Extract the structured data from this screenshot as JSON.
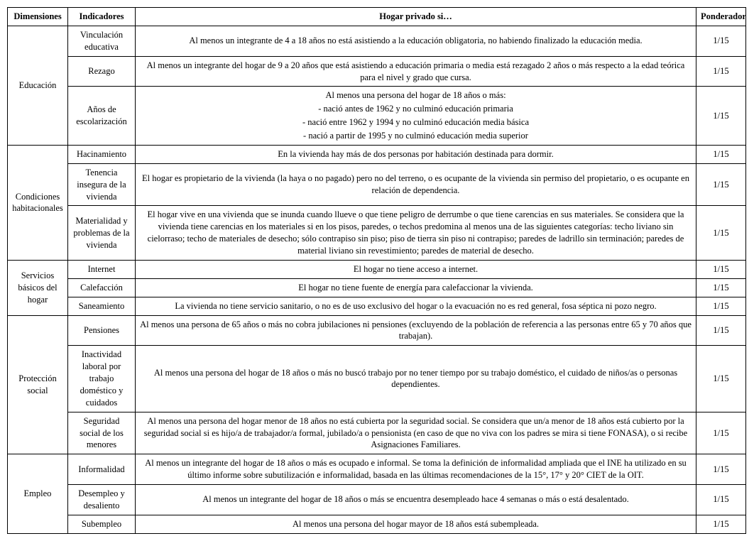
{
  "headers": {
    "dim": "Dimensiones",
    "ind": "Indicadores",
    "desc": "Hogar privado si…",
    "pond": "Ponderador"
  },
  "dims": {
    "educacion": "Educación",
    "condiciones": "Condiciones habitacionales",
    "servicios": "Servicios básicos del hogar",
    "proteccion": "Protección social",
    "empleo": "Empleo"
  },
  "rows": {
    "vinc": {
      "ind": "Vinculación educativa",
      "desc": "Al menos un integrante de 4 a 18 años no está asistiendo a la educación obligatoria, no habiendo finalizado la educación media.",
      "pond": "1/15"
    },
    "rezago": {
      "ind": "Rezago",
      "desc": "Al menos un integrante del hogar de 9 a 20 años que está asistiendo a educación primaria o media está rezagado 2 años o más respecto a la edad teórica para el nivel y grado que cursa.",
      "pond": "1/15"
    },
    "anios": {
      "ind": "Años de escolarización",
      "desc_intro": "Al menos una persona del hogar de 18 años o más:",
      "desc_b1": "-  nació antes de 1962 y no culminó educación primaria",
      "desc_b2": "- nació entre 1962 y 1994 y no culminó educación media básica",
      "desc_b3": "- nació a partir de 1995 y no culminó educación media superior",
      "pond": "1/15"
    },
    "hacin": {
      "ind": "Hacinamiento",
      "desc": "En la vivienda hay más de dos personas por habitación destinada para dormir.",
      "pond": "1/15"
    },
    "tenencia": {
      "ind": "Tenencia insegura de la vivienda",
      "desc": "El hogar es propietario de la vivienda (la haya o no pagado) pero no del terreno, o es ocupante de la vivienda sin permiso del propietario, o es ocupante en relación de dependencia.",
      "pond": "1/15"
    },
    "material": {
      "ind": "Materialidad y problemas de la vivienda",
      "desc": "El hogar vive en una vivienda que se inunda cuando llueve o que tiene peligro de derrumbe o que tiene carencias en sus materiales. Se considera que la vivienda tiene carencias en los materiales si en los pisos, paredes, o techos predomina al menos una de las siguientes categorías: techo liviano sin cielorraso; techo de materiales de desecho; sólo contrapiso sin piso; piso de tierra sin piso ni contrapiso; paredes de ladrillo sin terminación; paredes de material liviano sin revestimiento; paredes de material de desecho.",
      "pond": "1/15"
    },
    "internet": {
      "ind": "Internet",
      "desc": "El hogar no tiene acceso a internet.",
      "pond": "1/15"
    },
    "calef": {
      "ind": "Calefacción",
      "desc": "El hogar no tiene fuente de energía para calefaccionar la vivienda.",
      "pond": "1/15"
    },
    "sanea": {
      "ind": "Saneamiento",
      "desc": "La vivienda no tiene servicio sanitario, o no es de uso exclusivo del hogar o la evacuación no es red general, fosa séptica ni pozo negro.",
      "pond": "1/15"
    },
    "pens": {
      "ind": "Pensiones",
      "desc": "Al menos una persona de 65 años o más no cobra jubilaciones ni pensiones (excluyendo de la población de referencia a las personas entre 65 y 70 años que trabajan).",
      "pond": "1/15"
    },
    "inact": {
      "ind": "Inactividad laboral por trabajo doméstico y cuidados",
      "desc": "Al menos una persona del hogar de 18 años o más no buscó trabajo por no tener tiempo por su trabajo doméstico, el cuidado de niños/as o personas dependientes.",
      "pond": "1/15"
    },
    "segsoc": {
      "ind": "Seguridad social de los menores",
      "desc": "Al menos una persona del hogar menor de 18 años no está cubierta por la seguridad social. Se considera que un/a menor de 18 años está cubierto por la seguridad social si es hijo/a de trabajador/a formal, jubilado/a o pensionista (en caso de que no viva con los padres se mira si tiene FONASA), o si recibe Asignaciones Familiares.",
      "pond": "1/15"
    },
    "inform": {
      "ind": "Informalidad",
      "desc": "Al menos un integrante del hogar de 18 años o más es ocupado e informal. Se toma la definición de informalidad ampliada que el INE ha utilizado en su último informe sobre subutilización e informalidad, basada en las últimas recomendaciones de la 15°, 17° y 20° CIET de la OIT.",
      "pond": "1/15"
    },
    "desem": {
      "ind": "Desempleo y desaliento",
      "desc": "Al menos un integrante del hogar de 18 años o más se encuentra desempleado hace 4 semanas o más o está desalentado.",
      "pond": "1/15"
    },
    "subem": {
      "ind": "Subempleo",
      "desc": "Al menos una persona del hogar mayor de 18 años está subempleada.",
      "pond": "1/15"
    }
  }
}
